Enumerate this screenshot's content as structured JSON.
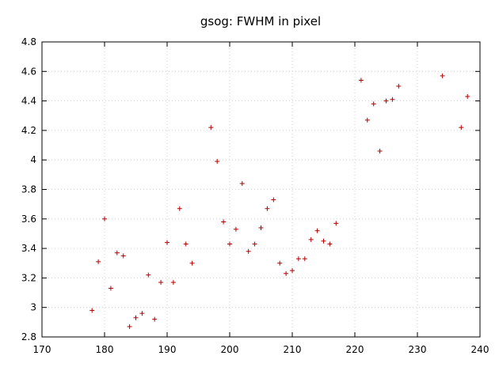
{
  "chart_data": {
    "type": "scatter",
    "title": "gsog: FWHM in pixel",
    "xlabel": "",
    "ylabel": "",
    "xlim": [
      170,
      240
    ],
    "ylim": [
      2.8,
      4.8
    ],
    "x_ticks": [
      170,
      180,
      190,
      200,
      210,
      220,
      230,
      240
    ],
    "y_ticks": [
      2.8,
      3,
      3.2,
      3.4,
      3.6,
      3.8,
      4,
      4.2,
      4.4,
      4.6,
      4.8
    ],
    "x_tick_labels": [
      "170",
      "180",
      "190",
      "200",
      "210",
      "220",
      "230",
      "240"
    ],
    "y_tick_labels": [
      "2.8",
      "3",
      "3.2",
      "3.4",
      "3.6",
      "3.8",
      "4",
      "4.2",
      "4.4",
      "4.6",
      "4.8"
    ],
    "grid": true,
    "legend": "none",
    "marker": "+",
    "marker_color": "#b00000",
    "series": [
      {
        "points": [
          [
            178,
            2.98
          ],
          [
            179,
            3.31
          ],
          [
            180,
            3.6
          ],
          [
            181,
            3.13
          ],
          [
            182,
            3.37
          ],
          [
            183,
            3.35
          ],
          [
            184,
            2.87
          ],
          [
            185,
            2.93
          ],
          [
            186,
            2.96
          ],
          [
            187,
            3.22
          ],
          [
            188,
            2.92
          ],
          [
            189,
            3.17
          ],
          [
            190,
            3.44
          ],
          [
            191,
            3.17
          ],
          [
            192,
            3.67
          ],
          [
            193,
            3.43
          ],
          [
            194,
            3.3
          ],
          [
            197,
            4.22
          ],
          [
            198,
            3.99
          ],
          [
            199,
            3.58
          ],
          [
            200,
            3.43
          ],
          [
            201,
            3.53
          ],
          [
            202,
            3.84
          ],
          [
            203,
            3.38
          ],
          [
            204,
            3.43
          ],
          [
            205,
            3.54
          ],
          [
            206,
            3.67
          ],
          [
            207,
            3.73
          ],
          [
            208,
            3.3
          ],
          [
            209,
            3.23
          ],
          [
            210,
            3.25
          ],
          [
            211,
            3.33
          ],
          [
            212,
            3.33
          ],
          [
            213,
            3.46
          ],
          [
            214,
            3.52
          ],
          [
            215,
            3.45
          ],
          [
            216,
            3.43
          ],
          [
            217,
            3.57
          ],
          [
            221,
            4.54
          ],
          [
            222,
            4.27
          ],
          [
            223,
            4.38
          ],
          [
            224,
            4.06
          ],
          [
            225,
            4.4
          ],
          [
            226,
            4.41
          ],
          [
            227,
            4.5
          ],
          [
            234,
            4.57
          ],
          [
            237,
            4.22
          ],
          [
            238,
            4.43
          ]
        ]
      }
    ]
  }
}
